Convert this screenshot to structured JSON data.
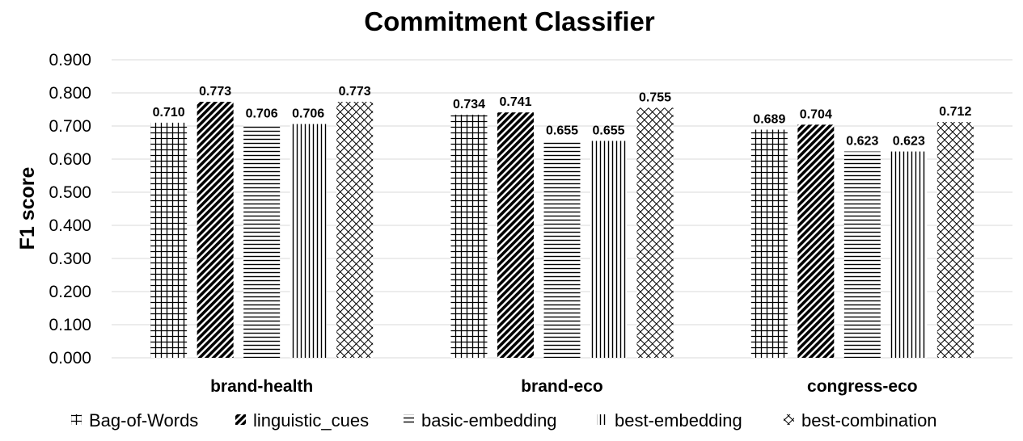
{
  "chart_data": {
    "type": "bar",
    "title": "Commitment Classifier",
    "ylabel": "F1 score",
    "xlabel": "",
    "ylim": [
      0,
      0.9
    ],
    "yticks": [
      "0.000",
      "0.100",
      "0.200",
      "0.300",
      "0.400",
      "0.500",
      "0.600",
      "0.700",
      "0.800",
      "0.900"
    ],
    "grid": true,
    "legend_position": "bottom",
    "categories": [
      "brand-health",
      "brand-eco",
      "congress-eco"
    ],
    "series": [
      {
        "name": "Bag-of-Words",
        "pattern": "grid",
        "values": [
          0.71,
          0.734,
          0.689
        ],
        "labels": [
          "0.710",
          "0.734",
          "0.689"
        ]
      },
      {
        "name": "linguistic_cues",
        "pattern": "diagonal",
        "values": [
          0.773,
          0.741,
          0.704
        ],
        "labels": [
          "0.773",
          "0.741",
          "0.704"
        ]
      },
      {
        "name": "basic-embedding",
        "pattern": "horizontal",
        "values": [
          0.706,
          0.655,
          0.623
        ],
        "labels": [
          "0.706",
          "0.655",
          "0.623"
        ]
      },
      {
        "name": "best-embedding",
        "pattern": "vertical",
        "values": [
          0.706,
          0.655,
          0.623
        ],
        "labels": [
          "0.706",
          "0.655",
          "0.623"
        ]
      },
      {
        "name": "best-combination",
        "pattern": "crosshatch",
        "values": [
          0.773,
          0.755,
          0.712
        ],
        "labels": [
          "0.773",
          "0.755",
          "0.712"
        ]
      }
    ]
  }
}
